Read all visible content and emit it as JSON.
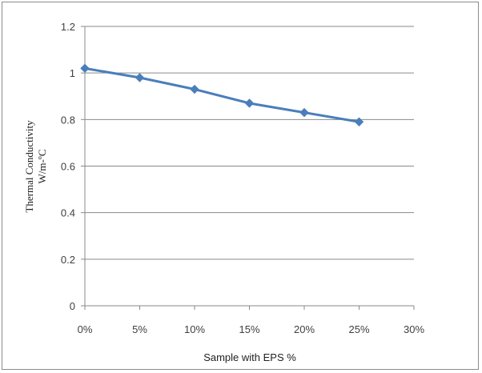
{
  "chart_data": {
    "type": "line",
    "title": "",
    "xlabel": "Sample with EPS %",
    "ylabel_line1": "Thermal Conductivity",
    "ylabel_line2": "W/m-ºC",
    "x_tick_labels": [
      "0%",
      "5%",
      "10%",
      "15%",
      "20%",
      "25%",
      "30%"
    ],
    "x_ticks": [
      0,
      5,
      10,
      15,
      20,
      25,
      30
    ],
    "xlim": [
      0,
      30
    ],
    "y_ticks": [
      0,
      0.2,
      0.4,
      0.6,
      0.8,
      1,
      1.2
    ],
    "y_tick_labels": [
      "0",
      "0.2",
      "0.4",
      "0.6",
      "0.8",
      "1",
      "1.2"
    ],
    "ylim": [
      0,
      1.2
    ],
    "grid": "horizontal",
    "legend": "none",
    "series": [
      {
        "x": [
          0,
          5,
          10,
          15,
          20,
          25
        ],
        "values": [
          1.02,
          0.98,
          0.93,
          0.87,
          0.83,
          0.79
        ],
        "color": "#4a7ebb",
        "marker": "diamond"
      }
    ]
  }
}
